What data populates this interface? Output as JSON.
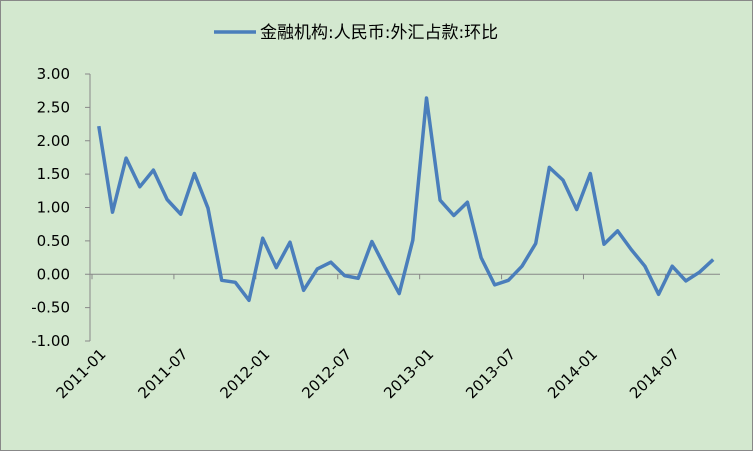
{
  "chart_data": {
    "type": "line",
    "series": [
      {
        "name": "金融机构:人民币:外汇占款:环比",
        "color": "#4a7ebb",
        "values": [
          2.22,
          0.93,
          1.74,
          1.31,
          1.56,
          1.12,
          0.9,
          1.51,
          0.99,
          -0.09,
          -0.12,
          -0.39,
          0.54,
          0.1,
          0.48,
          -0.24,
          0.08,
          0.18,
          -0.02,
          -0.06,
          0.49,
          0.09,
          -0.29,
          0.51,
          2.64,
          1.11,
          0.88,
          1.08,
          0.25,
          -0.16,
          -0.09,
          0.12,
          0.46,
          1.6,
          1.41,
          0.97,
          1.51,
          0.45,
          0.65,
          0.37,
          0.12,
          -0.3,
          0.12,
          -0.1,
          0.03,
          0.22
        ]
      }
    ],
    "categories": [
      "2011-01",
      null,
      null,
      null,
      null,
      null,
      "2011-07",
      null,
      null,
      null,
      null,
      null,
      "2012-01",
      null,
      null,
      null,
      null,
      null,
      "2012-07",
      null,
      null,
      null,
      null,
      null,
      "2013-01",
      null,
      null,
      null,
      null,
      null,
      "2013-07",
      null,
      null,
      null,
      null,
      null,
      "2014-01",
      null,
      null,
      null,
      null,
      null,
      "2014-07",
      null,
      null,
      null
    ],
    "ylim": [
      -1,
      3
    ],
    "yticks": [
      {
        "value": -1,
        "label": "-1.00"
      },
      {
        "value": -0.5,
        "label": "-0.50"
      },
      {
        "value": 0,
        "label": "0.00"
      },
      {
        "value": 0.5,
        "label": "0.50"
      },
      {
        "value": 1,
        "label": "1.00"
      },
      {
        "value": 1.5,
        "label": "1.50"
      },
      {
        "value": 2,
        "label": "2.00"
      },
      {
        "value": 2.5,
        "label": "2.50"
      },
      {
        "value": 3,
        "label": "3.00"
      }
    ],
    "legend": "top"
  }
}
